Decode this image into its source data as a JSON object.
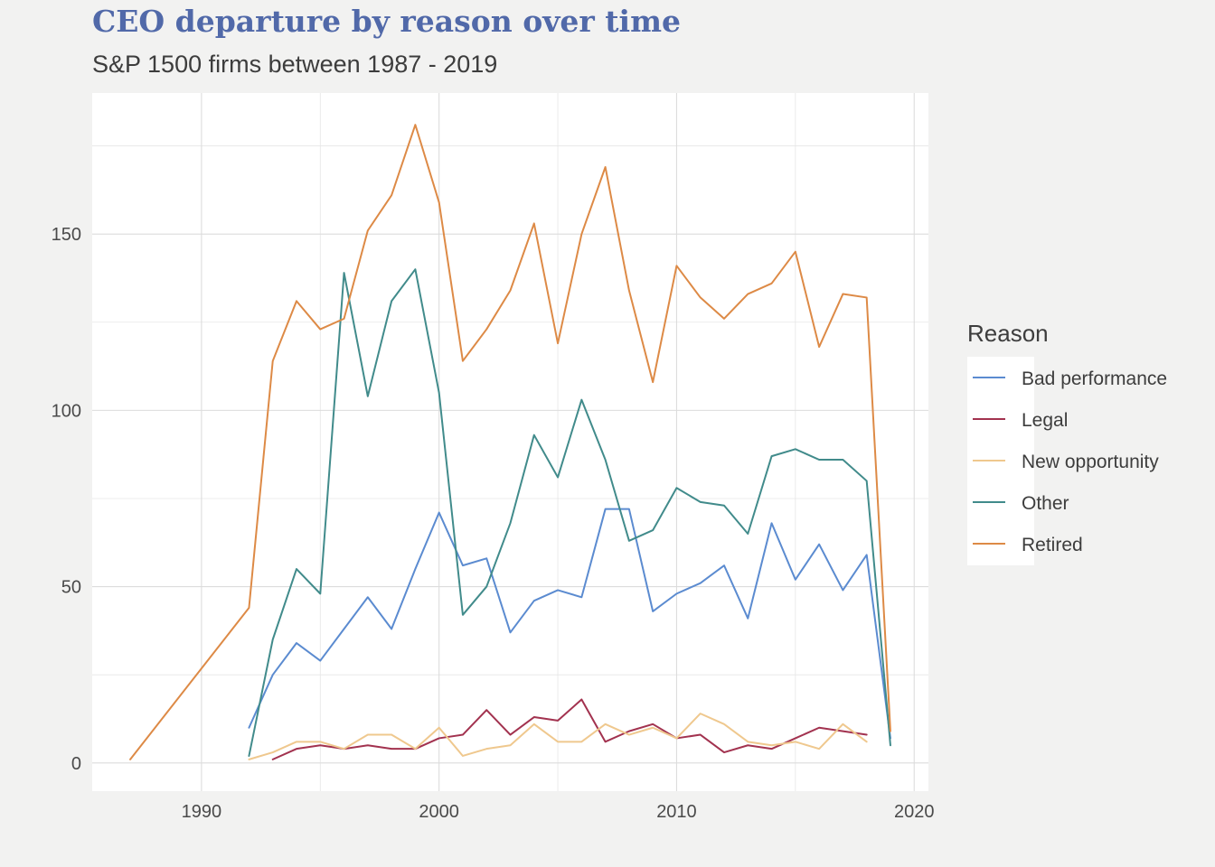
{
  "chart_data": {
    "type": "line",
    "title": "CEO departure by reason over time",
    "subtitle": "S&P 1500 firms between 1987 - 2019",
    "xlabel": "",
    "ylabel": "",
    "xlim": [
      1985.4,
      2020.6
    ],
    "ylim": [
      -8,
      190
    ],
    "x_ticks": [
      1990,
      2000,
      2010,
      2020
    ],
    "y_ticks": [
      0,
      50,
      100,
      150
    ],
    "x_minor": [
      1985,
      1995,
      2005,
      2015
    ],
    "y_minor": [
      25,
      75,
      125,
      175
    ],
    "grid": true,
    "legend_title": "Reason",
    "legend_position": "right",
    "series": [
      {
        "name": "Bad performance",
        "color": "#5b8bd0",
        "x": [
          1992,
          1993,
          1994,
          1995,
          1996,
          1997,
          1998,
          1999,
          2000,
          2001,
          2002,
          2003,
          2004,
          2005,
          2006,
          2007,
          2008,
          2009,
          2010,
          2011,
          2012,
          2013,
          2014,
          2015,
          2016,
          2017,
          2018,
          2019
        ],
        "values": [
          10,
          25,
          34,
          29,
          38,
          47,
          38,
          55,
          71,
          56,
          58,
          37,
          46,
          49,
          47,
          72,
          72,
          43,
          48,
          51,
          56,
          41,
          68,
          52,
          62,
          49,
          59,
          7
        ]
      },
      {
        "name": "Legal",
        "color": "#a2324f",
        "x": [
          1993,
          1994,
          1995,
          1996,
          1997,
          1998,
          1999,
          2000,
          2001,
          2002,
          2003,
          2004,
          2005,
          2006,
          2007,
          2008,
          2009,
          2010,
          2011,
          2012,
          2013,
          2014,
          2015,
          2016,
          2017,
          2018
        ],
        "values": [
          1,
          4,
          5,
          4,
          5,
          4,
          4,
          7,
          8,
          15,
          8,
          13,
          12,
          18,
          6,
          9,
          11,
          7,
          8,
          3,
          5,
          4,
          7,
          10,
          9,
          8
        ]
      },
      {
        "name": "New opportunity",
        "color": "#efc88e",
        "x": [
          1992,
          1993,
          1994,
          1995,
          1996,
          1997,
          1998,
          1999,
          2000,
          2001,
          2002,
          2003,
          2004,
          2005,
          2006,
          2007,
          2008,
          2009,
          2010,
          2011,
          2012,
          2013,
          2014,
          2015,
          2016,
          2017,
          2018
        ],
        "values": [
          1,
          3,
          6,
          6,
          4,
          8,
          8,
          4,
          10,
          2,
          4,
          5,
          11,
          6,
          6,
          11,
          8,
          10,
          7,
          14,
          11,
          6,
          5,
          6,
          4,
          11,
          6
        ]
      },
      {
        "name": "Other",
        "color": "#418b8b",
        "x": [
          1992,
          1993,
          1994,
          1995,
          1996,
          1997,
          1998,
          1999,
          2000,
          2001,
          2002,
          2003,
          2004,
          2005,
          2006,
          2007,
          2008,
          2009,
          2010,
          2011,
          2012,
          2013,
          2014,
          2015,
          2016,
          2017,
          2018,
          2019
        ],
        "values": [
          2,
          35,
          55,
          48,
          139,
          104,
          131,
          140,
          105,
          42,
          50,
          68,
          93,
          81,
          103,
          86,
          63,
          66,
          78,
          74,
          73,
          65,
          87,
          89,
          86,
          86,
          80,
          5
        ]
      },
      {
        "name": "Retired",
        "color": "#dd8a46",
        "x": [
          1987,
          1992,
          1993,
          1994,
          1995,
          1996,
          1997,
          1998,
          1999,
          2000,
          2001,
          2002,
          2003,
          2004,
          2005,
          2006,
          2007,
          2008,
          2009,
          2010,
          2011,
          2012,
          2013,
          2014,
          2015,
          2016,
          2017,
          2018,
          2019
        ],
        "values": [
          1,
          44,
          114,
          131,
          123,
          126,
          151,
          161,
          181,
          159,
          114,
          123,
          134,
          153,
          119,
          150,
          169,
          134,
          108,
          141,
          132,
          126,
          133,
          136,
          145,
          118,
          133,
          132,
          9
        ]
      }
    ]
  }
}
